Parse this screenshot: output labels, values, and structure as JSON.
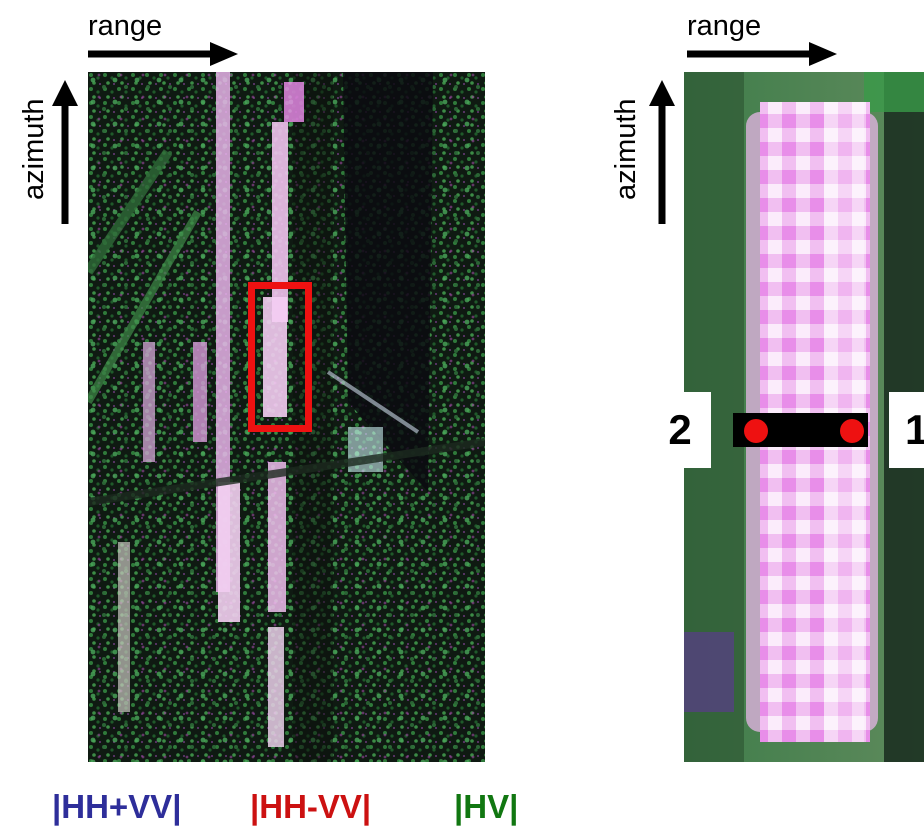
{
  "left_panel": {
    "range_label": "range",
    "azimuth_label": "azimuth"
  },
  "right_panel": {
    "range_label": "range",
    "azimuth_label": "azimuth",
    "point_left_label": "2",
    "point_right_label": "1"
  },
  "legend": [
    {
      "text": "|HH+VV|",
      "color": "#2e2e9a"
    },
    {
      "text": "|HH-VV|",
      "color": "#cc1111"
    },
    {
      "text": "|HV|",
      "color": "#117711"
    }
  ],
  "colors": {
    "selection_box": "#ee1111",
    "marker_dot": "#ee1111",
    "marker_bar": "#000000"
  }
}
